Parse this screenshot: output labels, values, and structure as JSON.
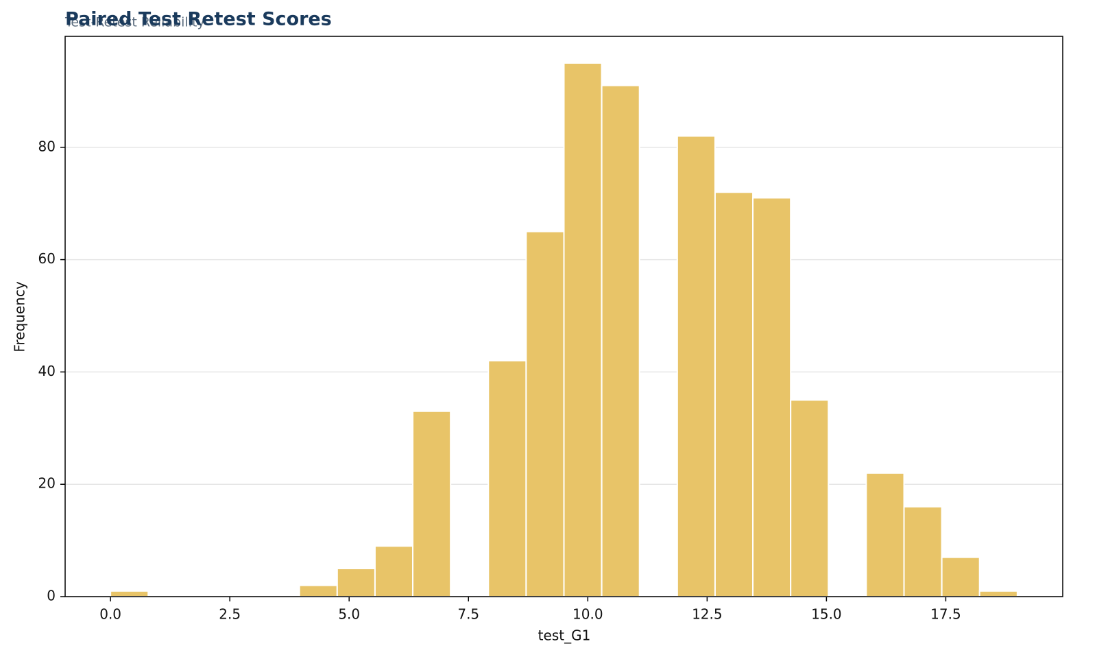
{
  "chart_data": {
    "type": "histogram",
    "title": "Paired Test Retest Scores",
    "subtitle": "Test-Retest Reliability",
    "x_label": "test_G1",
    "y_label": "Frequency",
    "bins": [
      0,
      0.7917,
      1.5833,
      2.375,
      3.1667,
      3.9583,
      4.75,
      5.5417,
      6.3333,
      7.125,
      7.9167,
      8.7083,
      9.5,
      10.2917,
      11.0833,
      11.875,
      12.6667,
      13.4583,
      14.25,
      15.0417,
      15.8333,
      16.625,
      17.4167,
      18.2083,
      19
    ],
    "values": [
      1,
      0,
      0,
      0,
      0,
      2,
      5,
      9,
      33,
      0,
      42,
      65,
      95,
      91,
      0,
      82,
      72,
      71,
      35,
      0,
      22,
      16,
      7,
      1
    ],
    "color": "#e8c468",
    "xlim": [
      -0.95,
      19.95
    ],
    "xticks": [
      {
        "value": 0,
        "label": "0.0"
      },
      2.5,
      {
        "value": 5,
        "label": "5.0"
      },
      7.5,
      {
        "value": 10,
        "label": "10.0"
      },
      12.5,
      {
        "value": 15,
        "label": "15.0"
      },
      17.5
    ],
    "ylim": [
      0,
      99.75
    ],
    "yticks": [
      0,
      20,
      40,
      60,
      80
    ],
    "grid": true
  }
}
